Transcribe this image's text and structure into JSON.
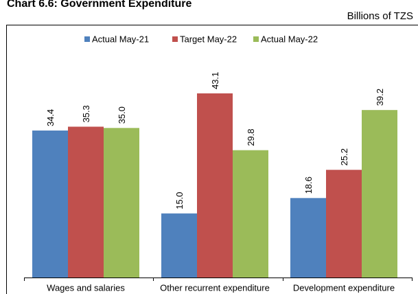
{
  "chart_data": {
    "type": "bar",
    "title": "Chart 6.6: Government Expenditure",
    "subtitle": "Billions of TZS",
    "categories": [
      "Wages and salaries",
      "Other recurrent expenditure",
      "Development expenditure"
    ],
    "series": [
      {
        "name": "Actual May-21",
        "color": "#4f81bd",
        "values": [
          34.4,
          15.0,
          18.6
        ],
        "value_labels": [
          "34.4",
          "15.0",
          "18.6"
        ]
      },
      {
        "name": "Target May-22",
        "color": "#c0504d",
        "values": [
          35.3,
          43.1,
          25.2
        ],
        "value_labels": [
          "35.3",
          "43.1",
          "25.2"
        ]
      },
      {
        "name": "Actual May-22",
        "color": "#9bbb59",
        "values": [
          35.0,
          29.8,
          39.2
        ],
        "value_labels": [
          "35.0",
          "29.8",
          "39.2"
        ]
      }
    ],
    "ylim": [
      0,
      50
    ],
    "legend": "top"
  }
}
